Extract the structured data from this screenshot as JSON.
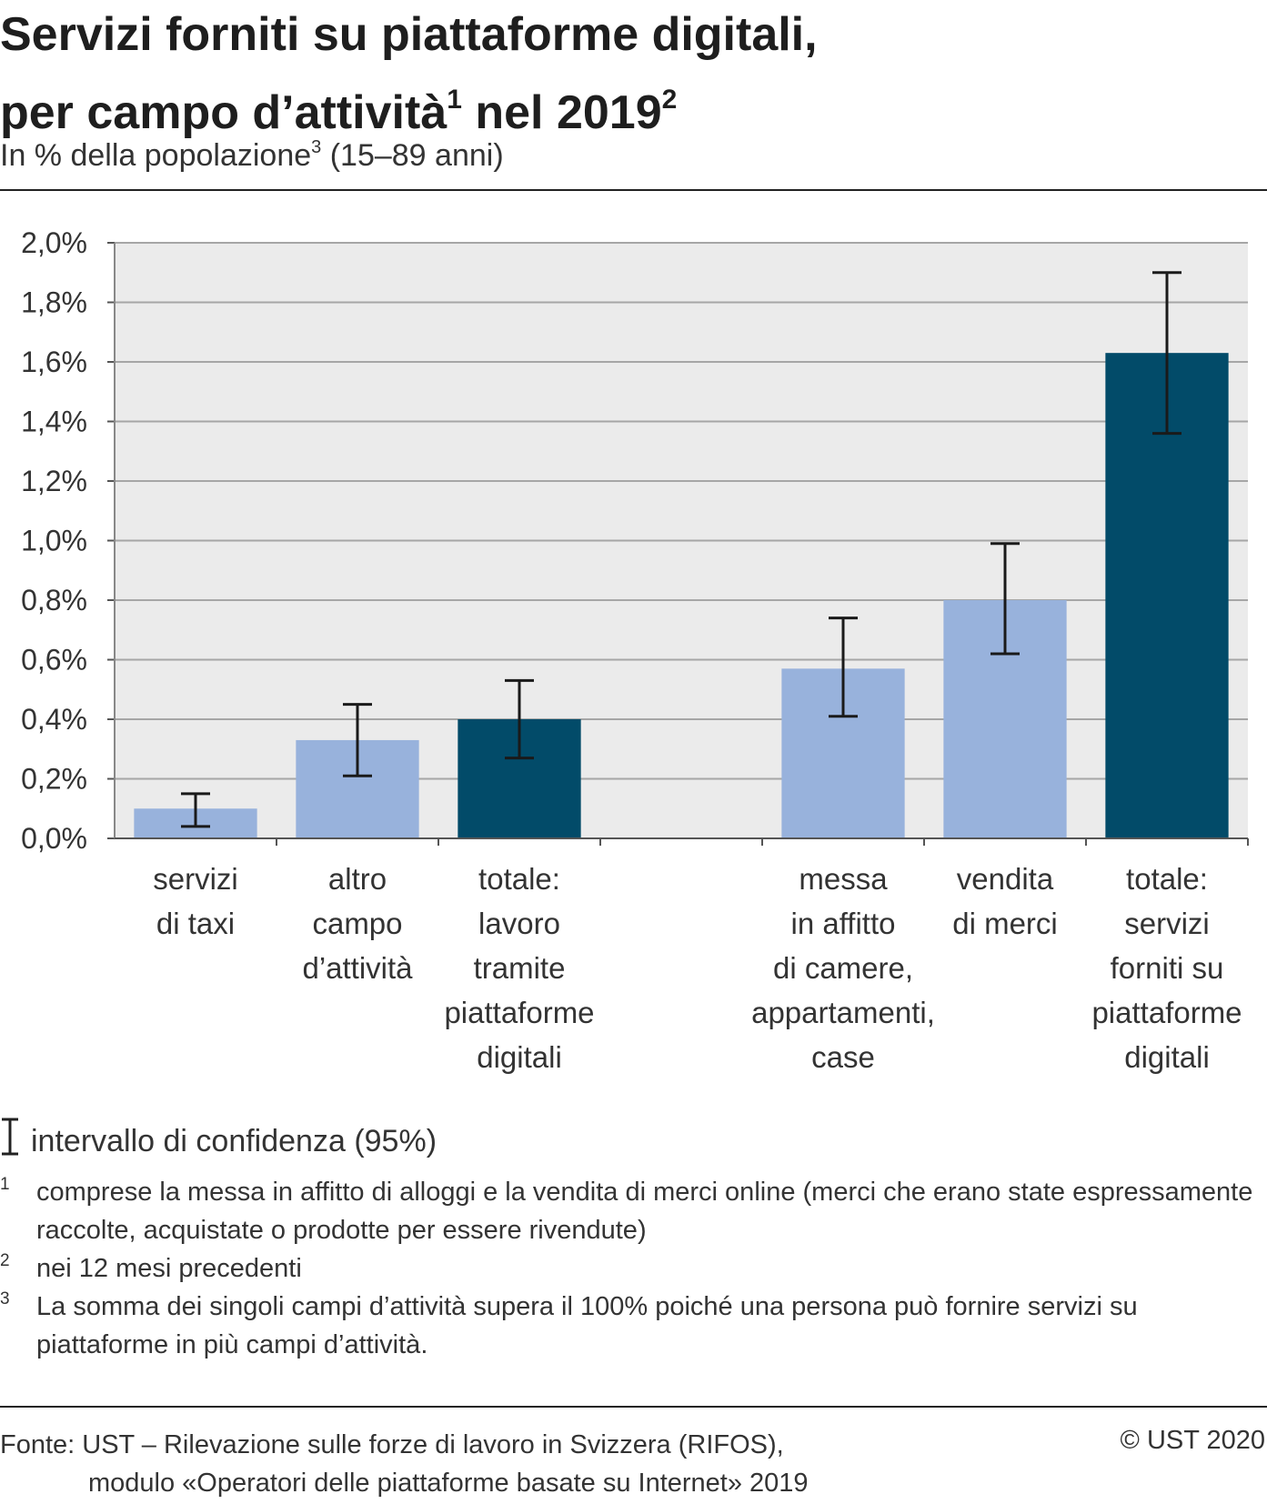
{
  "header": {
    "title_line1": "Servizi forniti su piattaforme digitali,",
    "title_line2": "per campo d’attività",
    "title_sup1": "1",
    "title_line2_b": " nel 2019",
    "title_sup2": "2",
    "subtitle_a": "In % della popolazione",
    "subtitle_sup": "3",
    "subtitle_b": " (15–89 anni)"
  },
  "legend": {
    "ci_label": "intervallo di confidenza (95%)"
  },
  "footnotes": [
    {
      "num": "1",
      "text": "comprese la messa in affitto di alloggi e la vendita di merci online (merci che erano state espressamente raccolte, acquistate o prodotte per essere rivendute)"
    },
    {
      "num": "2",
      "text": "nei 12 mesi precedenti"
    },
    {
      "num": "3",
      "text": "La somma dei singoli campi d’attività supera il 100% poiché una persona può fornire servizi su piattaforme in più campi d’attività."
    }
  ],
  "source": {
    "line1": "Fonte: UST – Rilevazione sulle forze di lavoro in Svizzera (RIFOS),",
    "line2": "modulo «Operatori delle piattaforme basate su Internet» 2019",
    "copyright": "© UST 2020"
  },
  "colors": {
    "light": "#98b2dc",
    "dark": "#024b69",
    "plot_bg": "#ebebeb",
    "grid": "#a6a6a6"
  },
  "chart_data": {
    "type": "bar",
    "ylim": [
      0,
      2.0
    ],
    "yticks": [
      "0,0%",
      "0,2%",
      "0,4%",
      "0,6%",
      "0,8%",
      "1,0%",
      "1,2%",
      "1,4%",
      "1,6%",
      "1,8%",
      "2,0%"
    ],
    "grid": true,
    "categories": [
      [
        "servizi",
        "di taxi"
      ],
      [
        "altro",
        "campo",
        "d’attività"
      ],
      [
        "totale:",
        "lavoro",
        "tramite",
        "piattaforme",
        "digitali"
      ],
      [],
      [
        "messa",
        "in affitto",
        "di camere,",
        "appartamenti,",
        "case"
      ],
      [
        "vendita",
        "di merci"
      ],
      [
        "totale:",
        "servizi",
        "forniti su",
        "piattaforme",
        "digitali"
      ]
    ],
    "values": [
      0.1,
      0.33,
      0.4,
      null,
      0.57,
      0.8,
      1.63
    ],
    "ci_low": [
      0.04,
      0.21,
      0.27,
      null,
      0.41,
      0.62,
      1.36
    ],
    "ci_high": [
      0.15,
      0.45,
      0.53,
      null,
      0.74,
      0.99,
      1.9
    ],
    "bar_colors": [
      "light",
      "light",
      "dark",
      null,
      "light",
      "light",
      "dark"
    ]
  }
}
